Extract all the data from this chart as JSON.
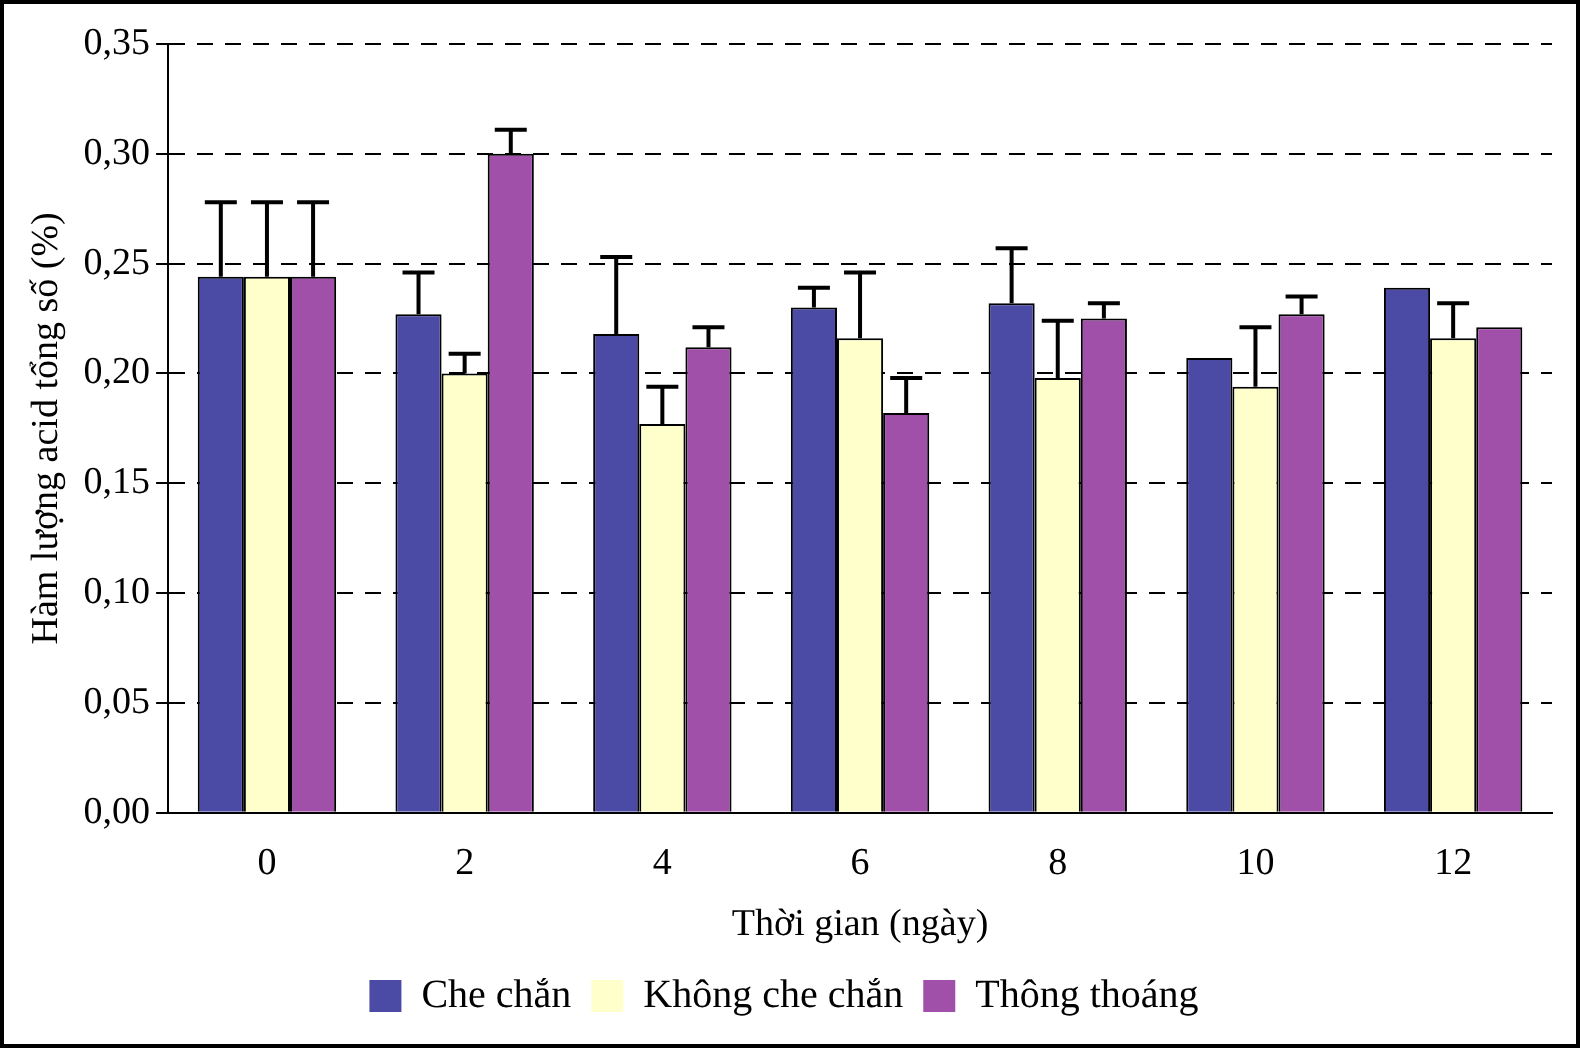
{
  "chart_data": {
    "type": "bar",
    "xlabel": "Thời gian (ngày)",
    "ylabel": "Hàm lượng acid tổng số (%)",
    "categories": [
      "0",
      "2",
      "4",
      "6",
      "8",
      "10",
      "12"
    ],
    "series": [
      {
        "name": "Che chắn",
        "color": "#4b4ba6",
        "values": [
          0.244,
          0.227,
          0.218,
          0.23,
          0.232,
          0.207,
          0.239
        ],
        "errors": [
          [
            0.244,
            0.278
          ],
          [
            0.227,
            0.246
          ],
          [
            0.218,
            0.253
          ],
          [
            0.23,
            0.239
          ],
          [
            0.232,
            0.257
          ],
          null,
          null
        ]
      },
      {
        "name": "Không che chắn",
        "color": "#ffffcc",
        "values": [
          0.244,
          0.2,
          0.177,
          0.216,
          0.198,
          0.194,
          0.216
        ],
        "errors": [
          [
            0.244,
            0.278
          ],
          [
            0.2,
            0.209
          ],
          [
            0.177,
            0.194
          ],
          [
            0.216,
            0.246
          ],
          [
            0.198,
            0.224
          ],
          [
            0.194,
            0.221
          ],
          [
            0.216,
            0.232
          ]
        ]
      },
      {
        "name": "Thông thoáng",
        "color": "#a050a8",
        "values": [
          0.244,
          0.3,
          0.212,
          0.182,
          0.225,
          0.227,
          0.221
        ],
        "errors": [
          [
            0.244,
            0.278
          ],
          [
            0.3,
            0.311
          ],
          [
            0.212,
            0.221
          ],
          [
            0.182,
            0.198
          ],
          [
            0.225,
            0.232
          ],
          [
            0.227,
            0.235
          ],
          null
        ]
      }
    ],
    "ylim": [
      0,
      0.35
    ],
    "yticks": [
      {
        "value": 0,
        "label": "0,00"
      },
      {
        "value": 0.05,
        "label": "0,05"
      },
      {
        "value": 0.1,
        "label": "0,10"
      },
      {
        "value": 0.15,
        "label": "0,15"
      },
      {
        "value": 0.2,
        "label": "0,20"
      },
      {
        "value": 0.25,
        "label": "0,25"
      },
      {
        "value": 0.3,
        "label": "0,30"
      },
      {
        "value": 0.35,
        "label": "0,35"
      }
    ],
    "grid": "y",
    "legend": "bottom"
  }
}
